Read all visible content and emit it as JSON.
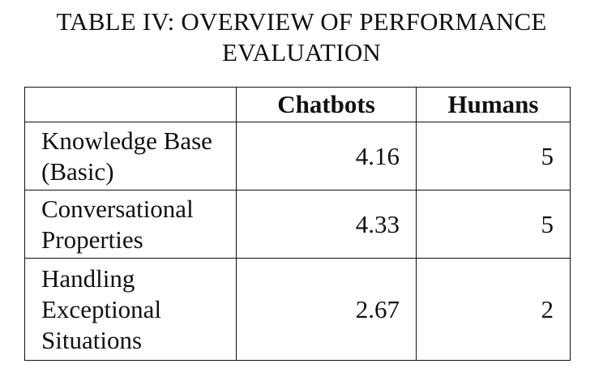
{
  "caption": {
    "line1": "TABLE IV: OVERVIEW OF PERFORMANCE",
    "line2": "EVALUATION"
  },
  "table": {
    "headers": [
      "",
      "Chatbots",
      "Humans"
    ],
    "rows": [
      {
        "label": "Knowledge Base (Basic)",
        "chatbots": "4.16",
        "humans": "5"
      },
      {
        "label": "Conversational Properties",
        "chatbots": "4.33",
        "humans": "5"
      },
      {
        "label": "Handling Exceptional Situations",
        "chatbots": "2.67",
        "humans": "2"
      }
    ]
  }
}
